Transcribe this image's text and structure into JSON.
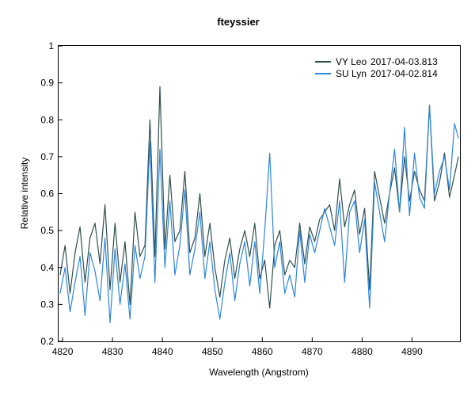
{
  "chart_data": {
    "type": "line",
    "title": "fteyssier",
    "xlabel": "Wavelength (Angstrom)",
    "ylabel": "Relative intensity",
    "xlim": [
      4819.2,
      4899.6
    ],
    "ylim": [
      0.2,
      1.0
    ],
    "xticks": [
      "4820",
      "4830",
      "4840",
      "4850",
      "4860",
      "4870",
      "4880",
      "4890"
    ],
    "yticks": [
      "0.2",
      "0.3",
      "0.4",
      "0.5",
      "0.6",
      "0.7",
      "0.8",
      "0.9",
      "1"
    ],
    "grid": false,
    "legend_position": "top-right",
    "series": [
      {
        "name": "VY Leo",
        "date": "2017-04-03.813",
        "color": "#2f4f4f",
        "x": [
          4819.5,
          4820.5,
          4821.5,
          4822.5,
          4823.5,
          4824.5,
          4825.5,
          4826.5,
          4827.5,
          4828.5,
          4829.5,
          4830.5,
          4831.5,
          4832.5,
          4833.5,
          4834.5,
          4835.5,
          4836.5,
          4837.5,
          4838.5,
          4839.5,
          4840.5,
          4841.5,
          4842.5,
          4843.5,
          4844.5,
          4845.5,
          4846.5,
          4847.5,
          4848.5,
          4849.5,
          4850.5,
          4851.5,
          4852.5,
          4853.5,
          4854.5,
          4855.5,
          4856.5,
          4857.5,
          4858.5,
          4859.5,
          4860.5,
          4861.5,
          4862.5,
          4863.5,
          4864.5,
          4865.5,
          4866.5,
          4867.5,
          4868.5,
          4869.5,
          4870.5,
          4871.5,
          4872.5,
          4873.5,
          4874.5,
          4875.5,
          4876.5,
          4877.5,
          4878.5,
          4879.5,
          4880.5,
          4881.5,
          4882.5,
          4883.5,
          4884.5,
          4885.5,
          4886.5,
          4887.5,
          4888.5,
          4889.5,
          4890.5,
          4891.5,
          4892.5,
          4893.5,
          4894.5,
          4895.5,
          4896.5,
          4897.5,
          4898.5,
          4899.3
        ],
        "values": [
          0.38,
          0.46,
          0.33,
          0.44,
          0.51,
          0.36,
          0.48,
          0.52,
          0.41,
          0.57,
          0.34,
          0.52,
          0.36,
          0.47,
          0.3,
          0.55,
          0.43,
          0.46,
          0.8,
          0.43,
          0.89,
          0.45,
          0.65,
          0.47,
          0.5,
          0.66,
          0.44,
          0.48,
          0.6,
          0.43,
          0.52,
          0.4,
          0.32,
          0.42,
          0.48,
          0.37,
          0.45,
          0.5,
          0.43,
          0.52,
          0.37,
          0.42,
          0.29,
          0.46,
          0.5,
          0.38,
          0.42,
          0.4,
          0.52,
          0.41,
          0.51,
          0.47,
          0.53,
          0.55,
          0.57,
          0.5,
          0.64,
          0.51,
          0.57,
          0.61,
          0.49,
          0.56,
          0.34,
          0.66,
          0.59,
          0.52,
          0.6,
          0.67,
          0.55,
          0.7,
          0.58,
          0.66,
          0.61,
          0.58,
          0.84,
          0.58,
          0.63,
          0.71,
          0.59,
          0.65,
          0.7
        ]
      },
      {
        "name": "SU Lyn",
        "date": "2017-04-02.814",
        "color": "#2d86d9",
        "x": [
          4819.5,
          4820.5,
          4821.5,
          4822.5,
          4823.5,
          4824.5,
          4825.5,
          4826.5,
          4827.5,
          4828.5,
          4829.5,
          4830.5,
          4831.5,
          4832.5,
          4833.5,
          4834.5,
          4835.5,
          4836.5,
          4837.5,
          4838.5,
          4839.5,
          4840.5,
          4841.5,
          4842.5,
          4843.5,
          4844.5,
          4845.5,
          4846.5,
          4847.5,
          4848.5,
          4849.5,
          4850.5,
          4851.5,
          4852.5,
          4853.5,
          4854.5,
          4855.5,
          4856.5,
          4857.5,
          4858.5,
          4859.5,
          4860.5,
          4861.5,
          4862.5,
          4863.5,
          4864.5,
          4865.5,
          4866.5,
          4867.5,
          4868.5,
          4869.5,
          4870.5,
          4871.5,
          4872.5,
          4873.5,
          4874.5,
          4875.5,
          4876.5,
          4877.5,
          4878.5,
          4879.5,
          4880.5,
          4881.5,
          4882.5,
          4883.5,
          4884.5,
          4885.5,
          4886.5,
          4887.5,
          4888.5,
          4889.5,
          4890.5,
          4891.5,
          4892.5,
          4893.5,
          4894.5,
          4895.5,
          4896.5,
          4897.5,
          4898.5,
          4899.3
        ],
        "values": [
          0.33,
          0.4,
          0.28,
          0.36,
          0.43,
          0.27,
          0.44,
          0.39,
          0.31,
          0.48,
          0.25,
          0.45,
          0.3,
          0.41,
          0.26,
          0.46,
          0.37,
          0.43,
          0.74,
          0.36,
          0.72,
          0.4,
          0.58,
          0.38,
          0.46,
          0.61,
          0.38,
          0.45,
          0.55,
          0.37,
          0.47,
          0.34,
          0.26,
          0.36,
          0.44,
          0.31,
          0.41,
          0.47,
          0.35,
          0.47,
          0.33,
          0.5,
          0.71,
          0.4,
          0.47,
          0.33,
          0.38,
          0.32,
          0.5,
          0.36,
          0.49,
          0.44,
          0.5,
          0.56,
          0.51,
          0.46,
          0.58,
          0.36,
          0.55,
          0.58,
          0.44,
          0.53,
          0.29,
          0.63,
          0.55,
          0.47,
          0.6,
          0.72,
          0.55,
          0.78,
          0.54,
          0.71,
          0.59,
          0.56,
          0.84,
          0.6,
          0.66,
          0.7,
          0.61,
          0.79,
          0.75
        ]
      }
    ]
  }
}
